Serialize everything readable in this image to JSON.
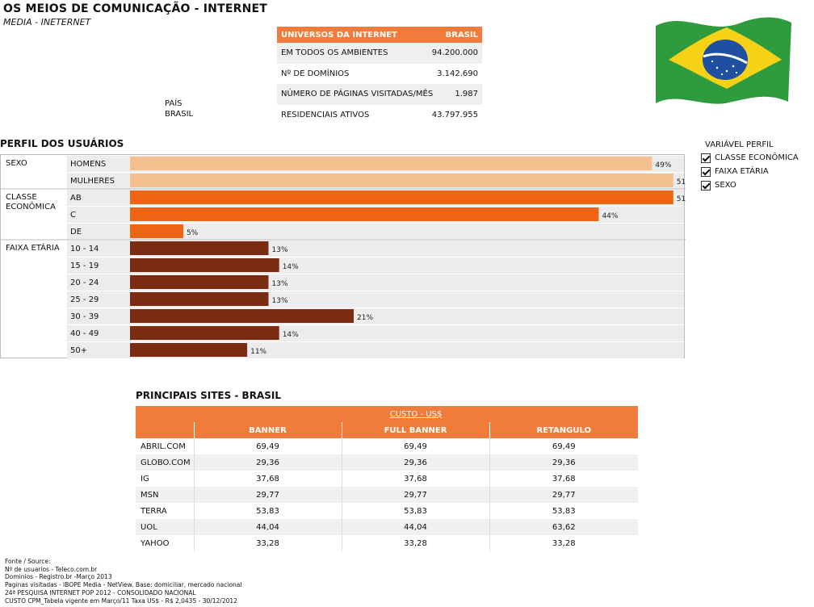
{
  "header": {
    "title": "OS MEIOS DE COMUNICAÇÃO - INTERNET",
    "subtitle": "MEDIA - INETERNET"
  },
  "country": {
    "label": "PAÍS",
    "value": "BRASIL"
  },
  "universe": {
    "header_label": "UNIVERSOS DA INTERNET",
    "header_value": "BRASIL",
    "rows": [
      {
        "label": "EM TODOS OS AMBIENTES",
        "value": "94.200.000"
      },
      {
        "label": "Nº DE DOMÍNIOS",
        "value": "3.142.690"
      },
      {
        "label": "NÚMERO DE PÁGINAS VISITADAS/MÊS",
        "value": "1.987"
      },
      {
        "label": "RESIDENCIAIS ATIVOS",
        "value": "43.797.955"
      }
    ]
  },
  "flag": {
    "name": "brazil-flag",
    "green": "#2e9b3e",
    "yellow": "#f5d216",
    "blue": "#1f4fa0"
  },
  "profile_title": "PERFIL DOS USUÁRIOS",
  "chart_data": {
    "type": "bar",
    "orientation": "horizontal",
    "xlim": [
      0,
      52
    ],
    "unit": "%",
    "groups": [
      {
        "name": "SEXO",
        "color": "#f4c08f",
        "categories": [
          "HOMENS",
          "MULHERES"
        ],
        "values": [
          49,
          51
        ]
      },
      {
        "name": "CLASSE ECONÔMICA",
        "color": "#ed6512",
        "categories": [
          "AB",
          "C",
          "DE"
        ],
        "values": [
          51,
          44,
          5
        ]
      },
      {
        "name": "FAIXA ETÁRIA",
        "color": "#7b2c12",
        "categories": [
          "10 - 14",
          "15 - 19",
          "20 - 24",
          "25 - 29",
          "30 - 39",
          "40 - 49",
          "50+"
        ],
        "values": [
          13,
          14,
          13,
          13,
          21,
          14,
          11
        ]
      }
    ]
  },
  "variable_profile": {
    "title": "VARIÁVEL PERFIL",
    "options": [
      {
        "label": "CLASSE ECONÔMICA",
        "checked": true
      },
      {
        "label": "FAIXA ETÁRIA",
        "checked": true
      },
      {
        "label": "SEXO",
        "checked": true
      }
    ]
  },
  "sites": {
    "title": "PRINCIPAIS SITES - BRASIL",
    "cost_header": "CUSTO - US$",
    "columns": [
      "BANNER",
      "FULL BANNER",
      "RETANGULO"
    ],
    "rows": [
      {
        "site": "ABRIL.COM",
        "values": [
          "69,49",
          "69,49",
          "69,49"
        ]
      },
      {
        "site": "GLOBO.COM",
        "values": [
          "29,36",
          "29,36",
          "29,36"
        ]
      },
      {
        "site": "IG",
        "values": [
          "37,68",
          "37,68",
          "37,68"
        ]
      },
      {
        "site": "MSN",
        "values": [
          "29,77",
          "29,77",
          "29,77"
        ]
      },
      {
        "site": "TERRA",
        "values": [
          "53,83",
          "53,83",
          "53,83"
        ]
      },
      {
        "site": "UOL",
        "values": [
          "44,04",
          "44,04",
          "63,62"
        ]
      },
      {
        "site": "YAHOO",
        "values": [
          "33,28",
          "33,28",
          "33,28"
        ]
      }
    ]
  },
  "sources": [
    "Fonte / Source:",
    "Nº de usuarios - Teleco.com.br",
    "Dominios - Registro.br  -Março 2013",
    "Paginas visitadas - IBOPE Media - NetView. Base: domiciliar, mercado nacional",
    "24ª PESQUISA INTERNET POP 2012 - CONSOLIDADO NACIONAL",
    "CUSTO CPM_Tabela vigente em Março/11 Taxa US$ - R$ 2,0435 - 30/12/2012"
  ]
}
